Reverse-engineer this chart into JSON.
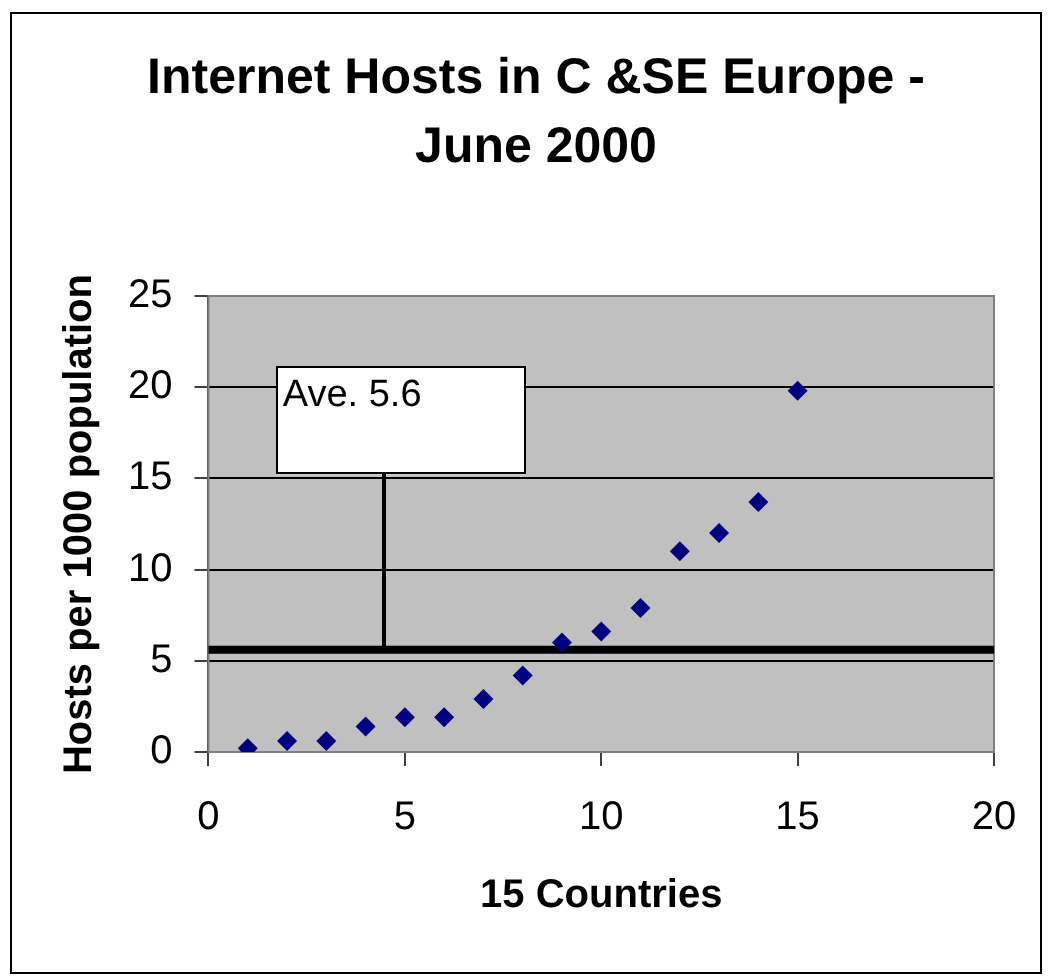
{
  "chart_data": {
    "type": "scatter",
    "title": "Internet Hosts in C &SE Europe - June 2000",
    "xlabel": "15 Countries",
    "ylabel": "Hosts per 1000 population",
    "x": [
      1,
      2,
      3,
      4,
      5,
      6,
      7,
      8,
      9,
      10,
      11,
      12,
      13,
      14,
      15
    ],
    "values": [
      0.2,
      0.6,
      0.6,
      1.4,
      1.9,
      1.9,
      2.9,
      4.2,
      6.0,
      6.6,
      7.9,
      11.0,
      12.0,
      13.7,
      19.8
    ],
    "color": "#000080",
    "marker": "diamond",
    "xlim": [
      0,
      20
    ],
    "xticks": [
      0,
      5,
      10,
      15,
      20
    ],
    "ylim": [
      0,
      25
    ],
    "yticks": [
      0,
      5,
      10,
      15,
      20,
      25
    ],
    "grid": "y",
    "legend": false,
    "ref_lines": [
      {
        "axis": "y",
        "value": 5.6,
        "label": "Ave. 5.6",
        "color": "#000000"
      }
    ]
  }
}
